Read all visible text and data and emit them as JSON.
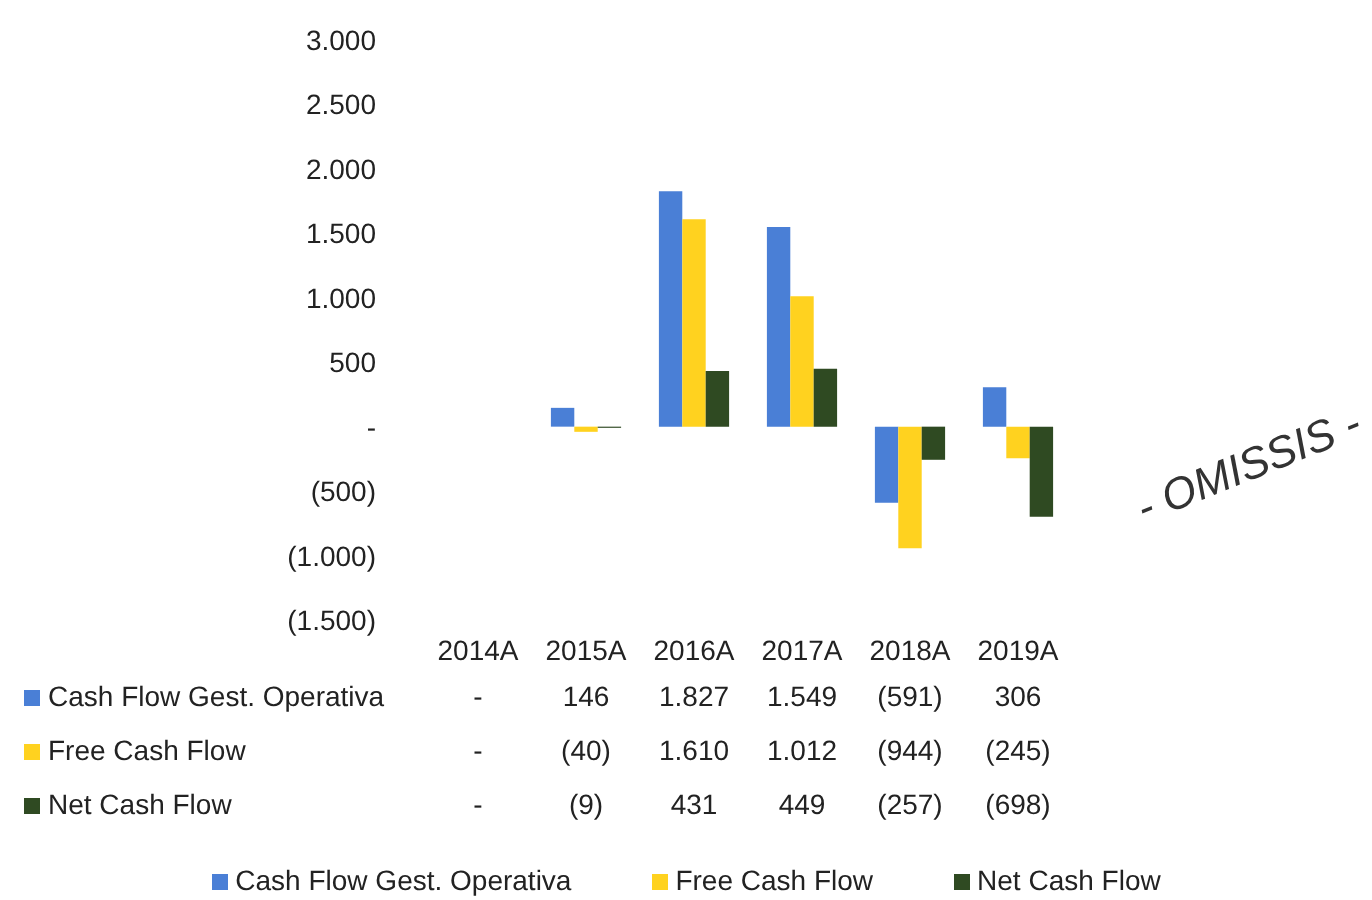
{
  "chart_data": {
    "type": "bar",
    "categories": [
      "2014A",
      "2015A",
      "2016A",
      "2017A",
      "2018A",
      "2019A"
    ],
    "series": [
      {
        "name": "Cash Flow Gest. Operativa",
        "color": "#4a7fd6",
        "values": [
          null,
          146,
          1827,
          1549,
          -591,
          306
        ],
        "value_labels": [
          "-",
          "146",
          "1.827",
          "1.549",
          "(591)",
          "306"
        ]
      },
      {
        "name": "Free Cash Flow",
        "color": "#ffd21f",
        "values": [
          null,
          -40,
          1610,
          1012,
          -944,
          -245
        ],
        "value_labels": [
          "-",
          "(40)",
          "1.610",
          "1.012",
          "(944)",
          "(245)"
        ]
      },
      {
        "name": "Net Cash Flow",
        "color": "#2f4a22",
        "values": [
          null,
          -9,
          431,
          449,
          -257,
          -698
        ],
        "value_labels": [
          "-",
          "(9)",
          "431",
          "449",
          "(257)",
          "(698)"
        ]
      }
    ],
    "ylim": [
      -1500,
      3000
    ],
    "yticks": [
      {
        "value": -1500,
        "label": "(1.500)"
      },
      {
        "value": -1000,
        "label": "(1.000)"
      },
      {
        "value": -500,
        "label": "(500)"
      },
      {
        "value": 0,
        "label": "-"
      },
      {
        "value": 500,
        "label": "500"
      },
      {
        "value": 1000,
        "label": "1.000"
      },
      {
        "value": 1500,
        "label": "1.500"
      },
      {
        "value": 2000,
        "label": "2.000"
      },
      {
        "value": 2500,
        "label": "2.500"
      },
      {
        "value": 3000,
        "label": "3.000"
      }
    ],
    "grid": false,
    "legend": "bottom",
    "annotations": [
      "- OMISSIS -"
    ]
  }
}
